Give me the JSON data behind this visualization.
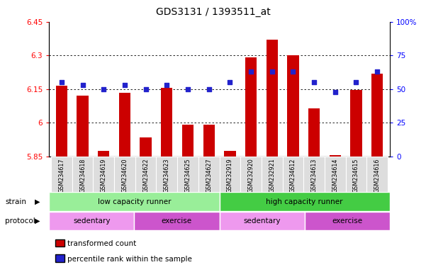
{
  "title": "GDS3131 / 1393511_at",
  "samples": [
    "GSM234617",
    "GSM234618",
    "GSM234619",
    "GSM234620",
    "GSM234622",
    "GSM234623",
    "GSM234625",
    "GSM234627",
    "GSM232919",
    "GSM232920",
    "GSM232921",
    "GSM234612",
    "GSM234613",
    "GSM234614",
    "GSM234615",
    "GSM234616"
  ],
  "bar_values": [
    6.165,
    6.12,
    5.875,
    6.135,
    5.935,
    6.155,
    5.99,
    5.99,
    5.875,
    6.29,
    6.37,
    6.3,
    6.065,
    5.855,
    6.145,
    6.22
  ],
  "percentile_values": [
    55,
    53,
    50,
    53,
    50,
    53,
    50,
    50,
    55,
    63,
    63,
    63,
    55,
    48,
    55,
    63
  ],
  "ymin": 5.85,
  "ymax": 6.45,
  "y2min": 0,
  "y2max": 100,
  "yticks": [
    5.85,
    6.0,
    6.15,
    6.3,
    6.45
  ],
  "ytick_labels": [
    "5.85",
    "6",
    "6.15",
    "6.3",
    "6.45"
  ],
  "y2ticks": [
    0,
    25,
    50,
    75,
    100
  ],
  "y2tick_labels": [
    "0",
    "25",
    "50",
    "75",
    "100%"
  ],
  "bar_color": "#cc0000",
  "percentile_color": "#2222cc",
  "background_color": "#ffffff",
  "strain_labels": [
    "low capacity runner",
    "high capacity runner"
  ],
  "strain_color_low": "#99ee99",
  "strain_color_high": "#44cc44",
  "protocol_groups": [
    {
      "label": "sedentary",
      "range": [
        0,
        4
      ],
      "color": "#ee99ee"
    },
    {
      "label": "exercise",
      "range": [
        4,
        8
      ],
      "color": "#cc55cc"
    },
    {
      "label": "sedentary",
      "range": [
        8,
        12
      ],
      "color": "#ee99ee"
    },
    {
      "label": "exercise",
      "range": [
        12,
        16
      ],
      "color": "#cc55cc"
    }
  ],
  "grid_lines": [
    6.0,
    6.15,
    6.3
  ],
  "legend_items": [
    {
      "color": "#cc0000",
      "label": "transformed count"
    },
    {
      "color": "#2222cc",
      "label": "percentile rank within the sample"
    }
  ]
}
